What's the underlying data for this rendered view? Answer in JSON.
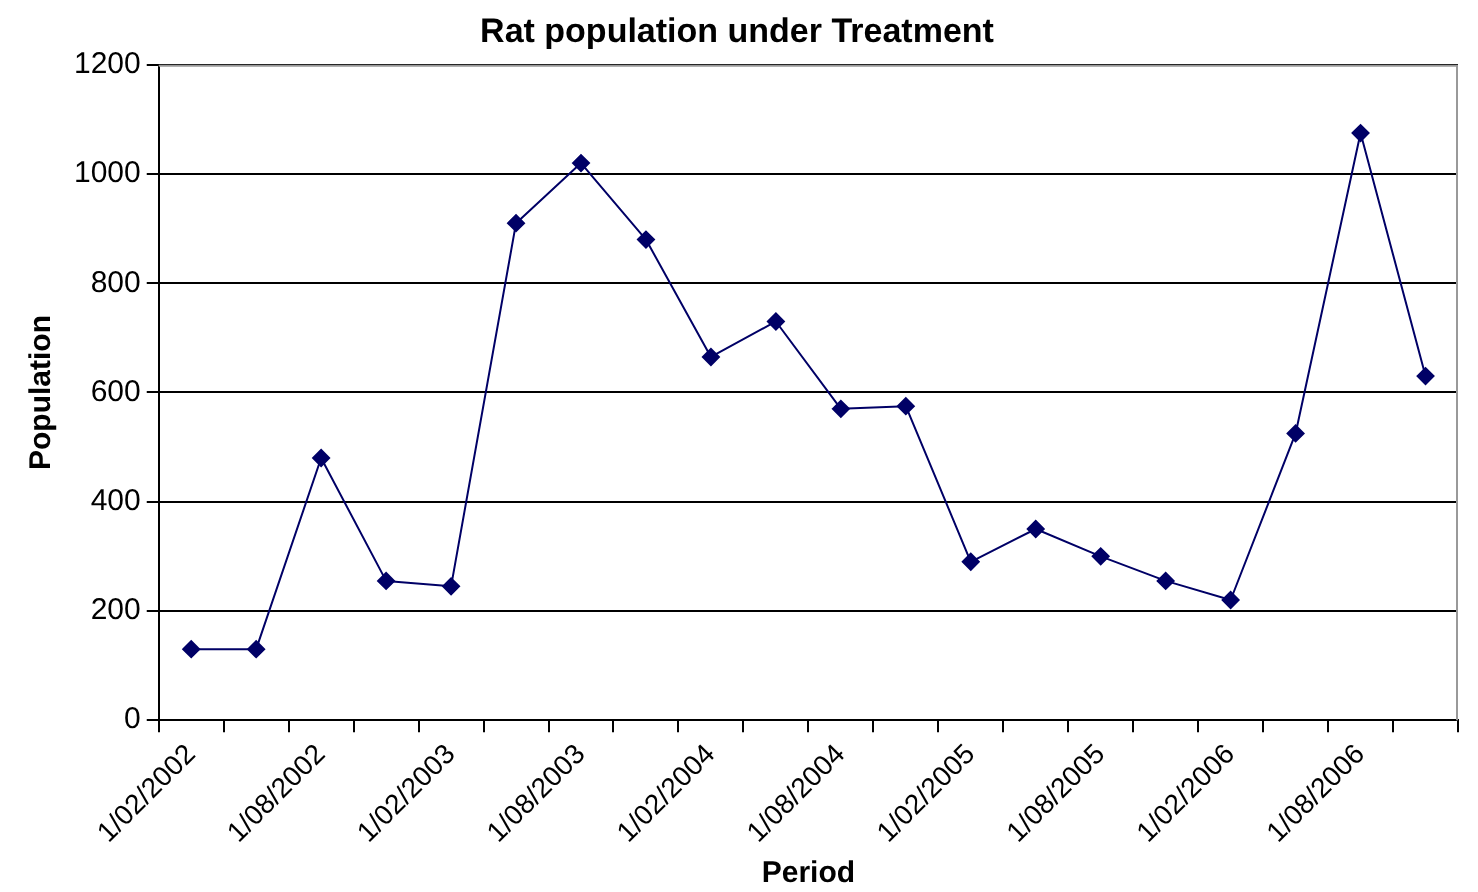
{
  "chart_data": {
    "type": "line",
    "title": "Rat population under Treatment",
    "xlabel": "Period",
    "ylabel": "Population",
    "categories": [
      "1/02/2002",
      null,
      "1/08/2002",
      null,
      "1/02/2003",
      null,
      "1/08/2003",
      null,
      "1/02/2004",
      null,
      "1/08/2004",
      null,
      "1/02/2005",
      null,
      "1/08/2005",
      null,
      "1/02/2006",
      null,
      "1/08/2006",
      null
    ],
    "series": [
      {
        "color": "#000066",
        "values": [
          130,
          130,
          480,
          255,
          245,
          910,
          1020,
          880,
          665,
          730,
          570,
          575,
          290,
          350,
          300,
          255,
          220,
          525,
          1075,
          630
        ]
      }
    ],
    "ylim": [
      0,
      1200
    ],
    "yticks": [
      0,
      200,
      400,
      600,
      800,
      1000,
      1200
    ],
    "grid": "y",
    "legend": false,
    "marker": "diamond",
    "line_style": "solid"
  }
}
